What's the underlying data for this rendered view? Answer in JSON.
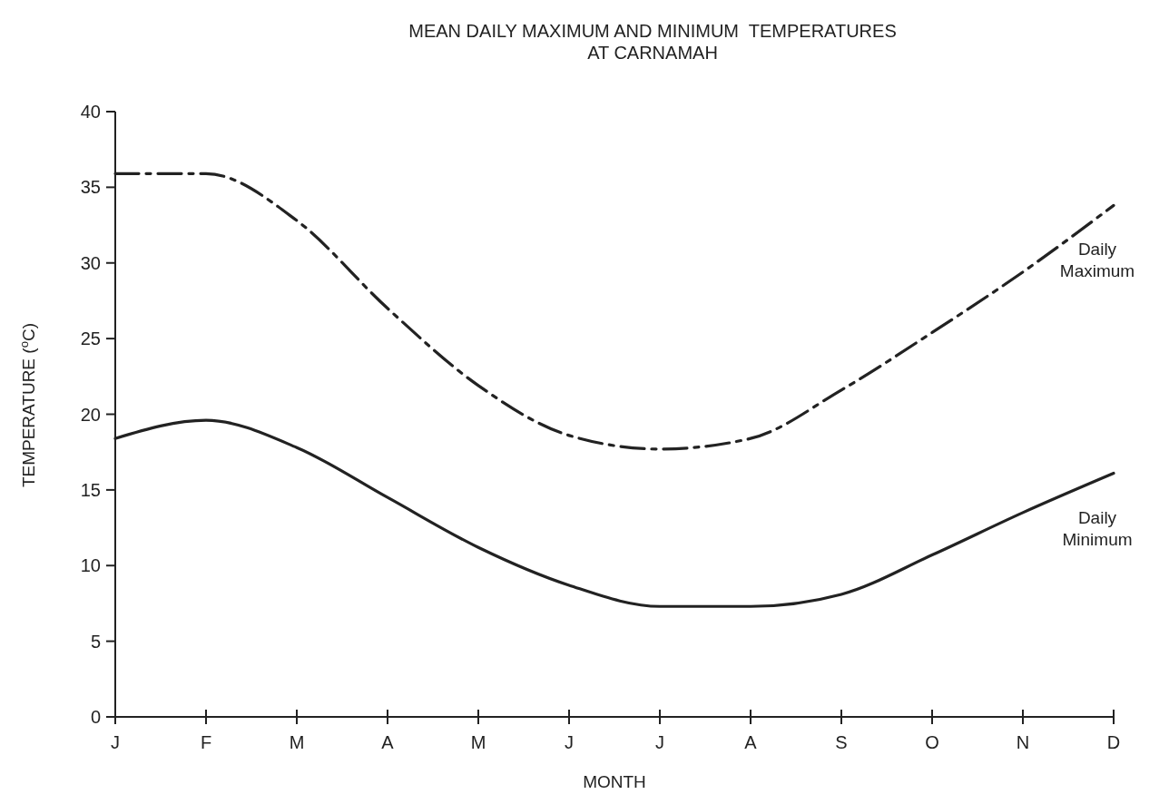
{
  "chart_data": {
    "type": "line",
    "title": "MEAN DAILY MAXIMUM AND MINIMUM  TEMPERATURES\nAT CARNAMAH",
    "xlabel": "MONTH",
    "ylabel": "TEMPERATURE ($^{o}$C)",
    "categories": [
      "J",
      "F",
      "M",
      "A",
      "M",
      "J",
      "J",
      "A",
      "S",
      "O",
      "N",
      "D"
    ],
    "series": [
      {
        "name": "Daily Maximum",
        "color": "#222222",
        "line_style": "dashed",
        "values": [
          35.9,
          35.9,
          32.8,
          27,
          21.9,
          18.6,
          17.7,
          18.4,
          21.6,
          25.4,
          29.4,
          33.8
        ]
      },
      {
        "name": "Daily Minimum",
        "color": "#222222",
        "line_style": "solid",
        "values": [
          18.4,
          19.6,
          17.8,
          14.5,
          11.2,
          8.7,
          7.3,
          7.3,
          8.1,
          10.7,
          13.5,
          16.1
        ]
      }
    ],
    "ylim": [
      0,
      40
    ],
    "yticks": [
      0,
      5,
      10,
      15,
      20,
      25,
      30,
      35,
      40
    ],
    "grid": false,
    "marker": "none"
  }
}
